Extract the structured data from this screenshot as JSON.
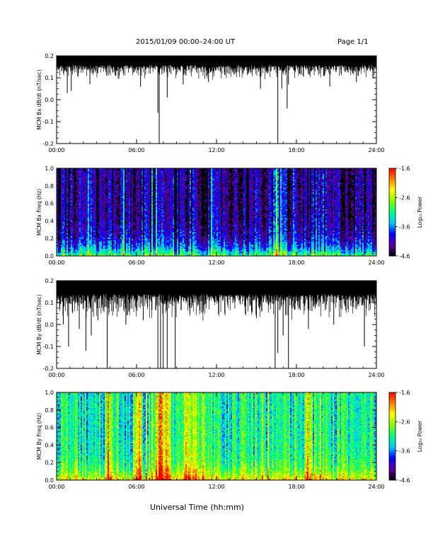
{
  "header": {
    "title": "2015/01/09  00:00–24:00 UT",
    "page": "Page 1/1"
  },
  "footer": {
    "xlabel": "Universal Time (hh:mm)"
  },
  "colors": {
    "trace": "#000000",
    "colorbar": [
      "#000000",
      "#5a00a0",
      "#0000ff",
      "#00c8ff",
      "#00ff80",
      "#80ff00",
      "#ffff00",
      "#ff8000",
      "#ff0000"
    ]
  },
  "chart_data": [
    {
      "type": "line",
      "ylabel": "MCM Bx dB/dt (nT/sec)",
      "xlim": [
        0,
        24
      ],
      "ylim": [
        -0.2,
        0.2
      ],
      "xticks": [
        "00:00",
        "06:00",
        "12:00",
        "18:00",
        "24:00"
      ],
      "yticks": [
        "-0.2",
        "-0.1",
        "0.0",
        "0.1",
        "0.2"
      ],
      "band": {
        "high": 0.2,
        "base": 0.16,
        "depth": 0.07
      },
      "spikes": [
        [
          0.8,
          0.03
        ],
        [
          1.1,
          0.04
        ],
        [
          2.5,
          0.07
        ],
        [
          6.3,
          0.06
        ],
        [
          7.6,
          -0.06
        ],
        [
          7.7,
          -0.2
        ],
        [
          8.3,
          0.01
        ],
        [
          9.5,
          0.07
        ],
        [
          11.4,
          0.08
        ],
        [
          15.3,
          0.05
        ],
        [
          16.6,
          -0.2
        ],
        [
          16.9,
          0.05
        ],
        [
          17.3,
          -0.04
        ],
        [
          17.4,
          0.07
        ],
        [
          20.5,
          0.06
        ],
        [
          22.5,
          0.08
        ]
      ]
    },
    {
      "type": "heatmap",
      "ylabel": "MCM Bx Freq (Hz)",
      "xlim": [
        0,
        24
      ],
      "ylim": [
        0.0,
        1.0
      ],
      "xticks": [
        "00:00",
        "06:00",
        "12:00",
        "18:00",
        "24:00"
      ],
      "yticks": [
        "0.0",
        "0.2",
        "0.4",
        "0.6",
        "0.8",
        "1.0"
      ],
      "colorbar": {
        "label": "Log₁₀ Power",
        "range": [
          -4.6,
          -1.6
        ],
        "ticks": [
          "-1.6",
          "-2.6",
          "-3.6",
          "-4.6"
        ]
      },
      "level_model": {
        "floor": -4.3,
        "low_freq_boost": 1.4,
        "events": [
          [
            7.6,
            0.5
          ],
          [
            16.5,
            0.6
          ],
          [
            17.0,
            0.4
          ]
        ]
      }
    },
    {
      "type": "line",
      "ylabel": "MCM By dB/dt (nT/sec)",
      "xlim": [
        0,
        24
      ],
      "ylim": [
        -0.2,
        0.2
      ],
      "xticks": [
        "00:00",
        "06:00",
        "12:00",
        "18:00",
        "24:00"
      ],
      "yticks": [
        "-0.2",
        "-0.1",
        "0.0",
        "0.1",
        "0.2"
      ],
      "band": {
        "high": 0.2,
        "base": 0.14,
        "depth": 0.12
      },
      "spikes": [
        [
          0.5,
          0.0
        ],
        [
          0.9,
          -0.1
        ],
        [
          1.7,
          -0.02
        ],
        [
          2.2,
          -0.12
        ],
        [
          2.6,
          -0.05
        ],
        [
          3.1,
          0.02
        ],
        [
          3.8,
          -0.2
        ],
        [
          5.2,
          0.0
        ],
        [
          6.5,
          0.02
        ],
        [
          7.6,
          -0.2
        ],
        [
          7.8,
          -0.2
        ],
        [
          8.0,
          -0.2
        ],
        [
          8.3,
          -0.2
        ],
        [
          8.9,
          -0.2
        ],
        [
          10.0,
          0.05
        ],
        [
          11.0,
          0.06
        ],
        [
          15.0,
          0.03
        ],
        [
          16.4,
          -0.2
        ],
        [
          16.6,
          -0.13
        ],
        [
          17.0,
          -0.05
        ],
        [
          17.4,
          -0.2
        ],
        [
          18.9,
          -0.02
        ],
        [
          20.8,
          0.0
        ],
        [
          23.1,
          -0.1
        ]
      ]
    },
    {
      "type": "heatmap",
      "ylabel": "MCM By Freq (Hz)",
      "xlim": [
        0,
        24
      ],
      "ylim": [
        0.0,
        1.0
      ],
      "xticks": [
        "00:00",
        "06:00",
        "12:00",
        "18:00",
        "24:00"
      ],
      "yticks": [
        "0.0",
        "0.2",
        "0.4",
        "0.6",
        "0.8",
        "1.0"
      ],
      "colorbar": {
        "label": "Log₁₀ Power",
        "range": [
          -4.6,
          -1.6
        ],
        "ticks": [
          "-1.6",
          "-2.6",
          "-3.6",
          "-4.6"
        ]
      },
      "level_model": {
        "floor": -3.2,
        "low_freq_boost": 0.9,
        "events": [
          [
            3.9,
            1.0
          ],
          [
            6.2,
            0.9
          ],
          [
            7.8,
            1.5
          ],
          [
            8.3,
            1.4
          ],
          [
            9.8,
            0.8
          ],
          [
            10.4,
            0.7
          ],
          [
            18.9,
            0.8
          ]
        ]
      }
    }
  ]
}
